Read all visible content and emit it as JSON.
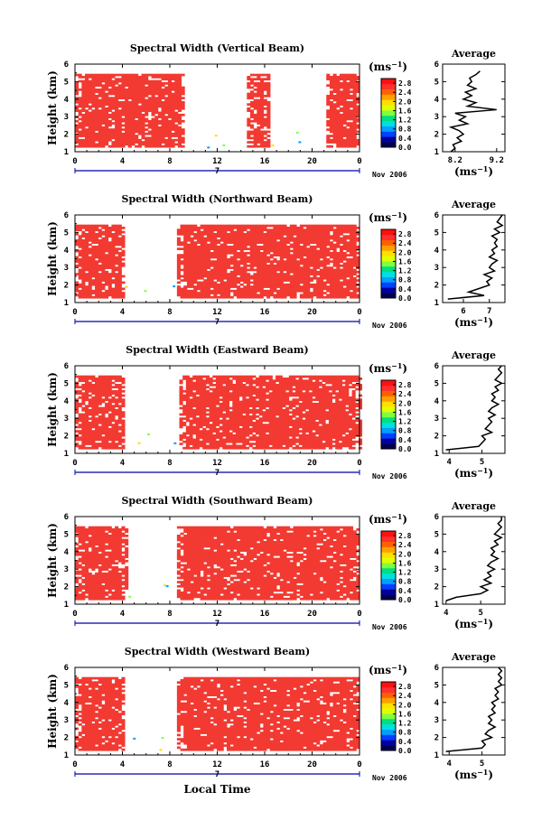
{
  "figure": {
    "x_axis_label": "Local Time",
    "date_label": "Nov 2006",
    "day_label": "7",
    "colorbar_unit_main": "(ms",
    "colorbar_unit_sup": "−1",
    "colorbar_unit_close": ")",
    "average_title": "Average",
    "average_xlabel_main": "(ms",
    "average_xlabel_sup": "−1",
    "average_xlabel_close": ")",
    "y_axis_label": "Height (km)"
  },
  "chart_data": [
    {
      "type": "heatmap",
      "title": "Spectral Width (Vertical Beam)",
      "xlabel": "",
      "ylabel": "Height (km)",
      "x_ticks": [
        "0",
        "4",
        "8",
        "12",
        "16",
        "20",
        "0"
      ],
      "y_ticks": [
        "1",
        "2",
        "3",
        "4",
        "5",
        "6"
      ],
      "xlim": [
        0,
        24
      ],
      "ylim": [
        1,
        6
      ],
      "data_height_range_km": [
        1.25,
        5.45
      ],
      "colorbar": {
        "ticks": [
          "0.0",
          "0.4",
          "0.8",
          "1.2",
          "1.6",
          "2.0",
          "2.4",
          "2.8"
        ],
        "range": [
          0,
          3.0
        ],
        "colors": [
          "#000050",
          "#0000a0",
          "#0040ff",
          "#00a0ff",
          "#00e0e0",
          "#00e080",
          "#80ff40",
          "#e0ff00",
          "#ffe000",
          "#ffa000",
          "#ff6000",
          "#ff3030",
          "#ff1010"
        ]
      },
      "dominant_value": 3.0,
      "filled_time_blocks_h": [
        [
          0,
          9.2
        ],
        [
          14.5,
          16.2
        ],
        [
          21.2,
          24
        ]
      ],
      "gaps_h": [
        [
          9.2,
          14.5
        ],
        [
          16.2,
          21.2
        ]
      ],
      "average_profile": {
        "xlabel": "(ms⁻¹)",
        "x_ticks": [
          "8.2",
          "9.2"
        ],
        "xlim": [
          7.9,
          9.4
        ],
        "heights_km": [
          1.0,
          1.2,
          1.4,
          1.6,
          1.8,
          2.0,
          2.2,
          2.4,
          2.6,
          2.8,
          3.0,
          3.2,
          3.4,
          3.6,
          3.8,
          4.0,
          4.2,
          4.4,
          4.6,
          4.8,
          5.0,
          5.2,
          5.4,
          5.6
        ],
        "values": [
          8.1,
          8.2,
          8.15,
          8.35,
          8.25,
          8.4,
          8.3,
          8.1,
          8.5,
          8.3,
          8.45,
          8.2,
          9.2,
          8.5,
          8.7,
          8.4,
          8.6,
          8.45,
          8.7,
          8.5,
          8.6,
          8.55,
          8.7,
          8.8
        ]
      }
    },
    {
      "type": "heatmap",
      "title": "Spectral Width (Northward Beam)",
      "xlabel": "",
      "ylabel": "Height (km)",
      "x_ticks": [
        "0",
        "4",
        "8",
        "12",
        "16",
        "20",
        "0"
      ],
      "y_ticks": [
        "1",
        "2",
        "3",
        "4",
        "5",
        "6"
      ],
      "xlim": [
        0,
        24
      ],
      "ylim": [
        1,
        6
      ],
      "data_height_range_km": [
        1.25,
        5.45
      ],
      "colorbar": {
        "ticks": [
          "0.0",
          "0.4",
          "0.8",
          "1.2",
          "1.6",
          "2.0",
          "2.4",
          "2.8"
        ],
        "range": [
          0,
          3.0
        ]
      },
      "dominant_value": 3.0,
      "filled_time_blocks_h": [
        [
          0,
          4.2
        ],
        [
          8.6,
          24
        ]
      ],
      "gaps_h": [
        [
          4.2,
          8.6
        ]
      ],
      "average_profile": {
        "xlabel": "(ms⁻¹)",
        "x_ticks": [
          "6",
          "7"
        ],
        "xlim": [
          5.2,
          7.6
        ],
        "heights_km": [
          1.2,
          1.4,
          1.6,
          1.8,
          2.0,
          2.2,
          2.4,
          2.6,
          2.8,
          3.0,
          3.2,
          3.4,
          3.6,
          3.8,
          4.0,
          4.2,
          4.4,
          4.6,
          4.8,
          5.0,
          5.2,
          5.4,
          5.6,
          5.8,
          6.0
        ],
        "values": [
          5.4,
          6.8,
          6.2,
          6.6,
          7.0,
          6.9,
          7.1,
          6.8,
          7.2,
          7.0,
          7.1,
          7.3,
          7.0,
          7.2,
          7.1,
          7.3,
          7.2,
          7.3,
          7.1,
          7.4,
          7.2,
          7.5,
          7.3,
          7.4,
          7.5
        ]
      }
    },
    {
      "type": "heatmap",
      "title": "Spectral Width (Eastward Beam)",
      "xlabel": "",
      "ylabel": "Height (km)",
      "x_ticks": [
        "0",
        "4",
        "8",
        "12",
        "16",
        "20",
        "0"
      ],
      "y_ticks": [
        "1",
        "2",
        "3",
        "4",
        "5",
        "6"
      ],
      "xlim": [
        0,
        24
      ],
      "ylim": [
        1,
        6
      ],
      "data_height_range_km": [
        1.25,
        5.45
      ],
      "colorbar": {
        "ticks": [
          "0.0",
          "0.4",
          "0.8",
          "1.2",
          "1.6",
          "2.0",
          "2.4",
          "2.8"
        ],
        "range": [
          0,
          3.0
        ]
      },
      "dominant_value": 3.0,
      "filled_time_blocks_h": [
        [
          0,
          4.2
        ],
        [
          8.8,
          24
        ]
      ],
      "gaps_h": [
        [
          4.2,
          8.8
        ]
      ],
      "average_profile": {
        "xlabel": "(ms⁻¹)",
        "x_ticks": [
          "4",
          "5"
        ],
        "xlim": [
          3.8,
          5.7
        ],
        "heights_km": [
          1.2,
          1.4,
          1.6,
          1.8,
          2.0,
          2.2,
          2.4,
          2.6,
          2.8,
          3.0,
          3.2,
          3.4,
          3.6,
          3.8,
          4.0,
          4.2,
          4.4,
          4.6,
          4.8,
          5.0,
          5.2,
          5.4,
          5.6,
          5.8,
          6.0
        ],
        "values": [
          3.9,
          4.9,
          5.0,
          5.1,
          5.0,
          5.3,
          5.1,
          5.2,
          5.3,
          5.2,
          5.4,
          5.2,
          5.3,
          5.5,
          5.3,
          5.4,
          5.3,
          5.5,
          5.4,
          5.6,
          5.4,
          5.5,
          5.6,
          5.5,
          5.6
        ]
      }
    },
    {
      "type": "heatmap",
      "title": "Spectral Width (Southward Beam)",
      "xlabel": "",
      "ylabel": "Height (km)",
      "x_ticks": [
        "0",
        "4",
        "8",
        "12",
        "16",
        "20",
        "0"
      ],
      "y_ticks": [
        "1",
        "2",
        "3",
        "4",
        "5",
        "6"
      ],
      "xlim": [
        0,
        24
      ],
      "ylim": [
        1,
        6
      ],
      "data_height_range_km": [
        1.25,
        5.45
      ],
      "colorbar": {
        "ticks": [
          "0.0",
          "0.4",
          "0.8",
          "1.2",
          "1.6",
          "2.0",
          "2.4",
          "2.8"
        ],
        "range": [
          0,
          3.0
        ]
      },
      "dominant_value": 3.0,
      "filled_time_blocks_h": [
        [
          0,
          4.3
        ],
        [
          8.6,
          24
        ]
      ],
      "gaps_h": [
        [
          4.3,
          8.6
        ]
      ],
      "average_profile": {
        "xlabel": "(ms⁻¹)",
        "x_ticks": [
          "4",
          "5"
        ],
        "xlim": [
          3.9,
          5.7
        ],
        "heights_km": [
          1.2,
          1.4,
          1.6,
          1.8,
          2.0,
          2.2,
          2.4,
          2.6,
          2.8,
          3.0,
          3.2,
          3.4,
          3.6,
          3.8,
          4.0,
          4.2,
          4.4,
          4.6,
          4.8,
          5.0,
          5.2,
          5.4,
          5.6,
          5.8,
          6.0
        ],
        "values": [
          4.0,
          4.3,
          5.0,
          5.2,
          5.0,
          5.3,
          5.1,
          5.3,
          5.2,
          5.4,
          5.2,
          5.3,
          5.5,
          5.3,
          5.4,
          5.3,
          5.5,
          5.4,
          5.6,
          5.4,
          5.5,
          5.6,
          5.5,
          5.6,
          5.6
        ]
      }
    },
    {
      "type": "heatmap",
      "title": "Spectral Width (Westward Beam)",
      "xlabel": "Local Time",
      "ylabel": "Height (km)",
      "x_ticks": [
        "0",
        "4",
        "8",
        "12",
        "16",
        "20",
        "0"
      ],
      "y_ticks": [
        "1",
        "2",
        "3",
        "4",
        "5",
        "6"
      ],
      "xlim": [
        0,
        24
      ],
      "ylim": [
        1,
        6
      ],
      "data_height_range_km": [
        1.25,
        5.45
      ],
      "colorbar": {
        "ticks": [
          "0.0",
          "0.4",
          "0.8",
          "1.2",
          "1.6",
          "2.0",
          "2.4",
          "2.8"
        ],
        "range": [
          0,
          3.0
        ]
      },
      "dominant_value": 3.0,
      "filled_time_blocks_h": [
        [
          0,
          4.2
        ],
        [
          8.6,
          24
        ]
      ],
      "gaps_h": [
        [
          4.2,
          8.6
        ]
      ],
      "average_profile": {
        "xlabel": "(ms⁻¹)",
        "x_ticks": [
          "4",
          "5"
        ],
        "xlim": [
          3.8,
          5.7
        ],
        "heights_km": [
          1.2,
          1.4,
          1.6,
          1.8,
          2.0,
          2.2,
          2.4,
          2.6,
          2.8,
          3.0,
          3.2,
          3.4,
          3.6,
          3.8,
          4.0,
          4.2,
          4.4,
          4.6,
          4.8,
          5.0,
          5.2,
          5.4,
          5.6,
          5.8,
          6.0
        ],
        "values": [
          3.9,
          5.0,
          5.1,
          5.0,
          5.3,
          5.1,
          5.2,
          5.4,
          5.2,
          5.3,
          5.2,
          5.4,
          5.3,
          5.4,
          5.3,
          5.5,
          5.4,
          5.5,
          5.4,
          5.6,
          5.5,
          5.6,
          5.5,
          5.6,
          5.5
        ]
      }
    }
  ]
}
